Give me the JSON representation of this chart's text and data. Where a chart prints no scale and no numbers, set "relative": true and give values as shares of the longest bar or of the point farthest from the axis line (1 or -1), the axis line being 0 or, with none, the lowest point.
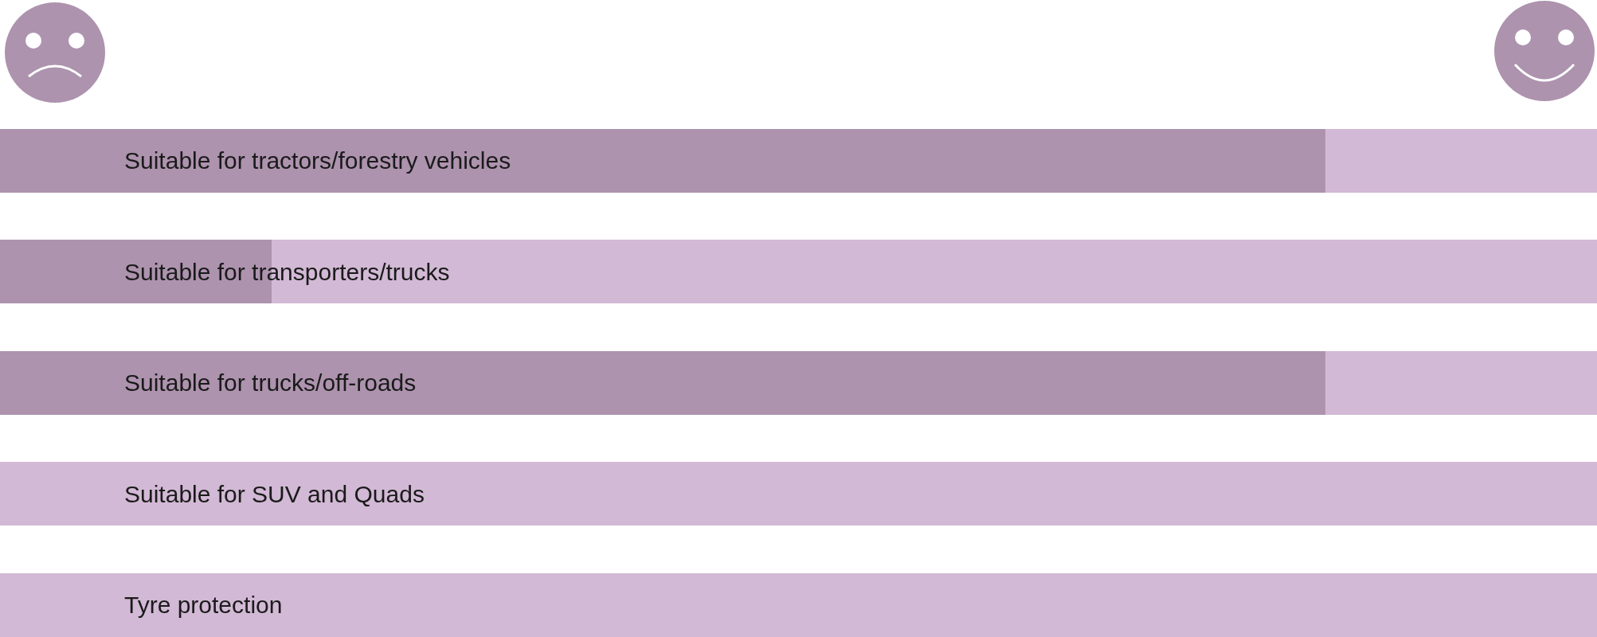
{
  "chart_data": {
    "type": "bar",
    "orientation": "horizontal",
    "stacked": true,
    "relative": true,
    "tick_labels": "y",
    "categories": [
      "Suitable for tractors/forestry vehicles",
      "Suitable for transporters/trucks",
      "Suitable for trucks/off-roads",
      "Suitable for SUV and Quads",
      "Tyre protection"
    ],
    "series": [
      {
        "color": "#ad93ae",
        "values": [
          0.83,
          0.17,
          0.83,
          0,
          0
        ]
      },
      {
        "color": "#d2b9d5",
        "values": [
          0.17,
          0.83,
          0.17,
          1,
          1
        ]
      }
    ]
  }
}
